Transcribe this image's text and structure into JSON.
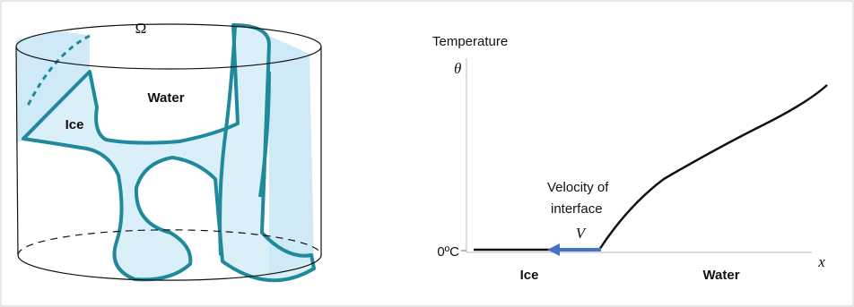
{
  "left_panel": {
    "domain_label": "Ω",
    "water_label": "Water",
    "ice_label": "Ice"
  },
  "right_panel": {
    "y_axis_title": "Temperature",
    "y_symbol": "θ",
    "zero_label": "0ºC",
    "annotation_lines": [
      "Velocity of",
      "interface"
    ],
    "velocity_symbol": "V",
    "ice_region": "Ice",
    "water_region": "Water",
    "x_symbol": "x"
  }
}
